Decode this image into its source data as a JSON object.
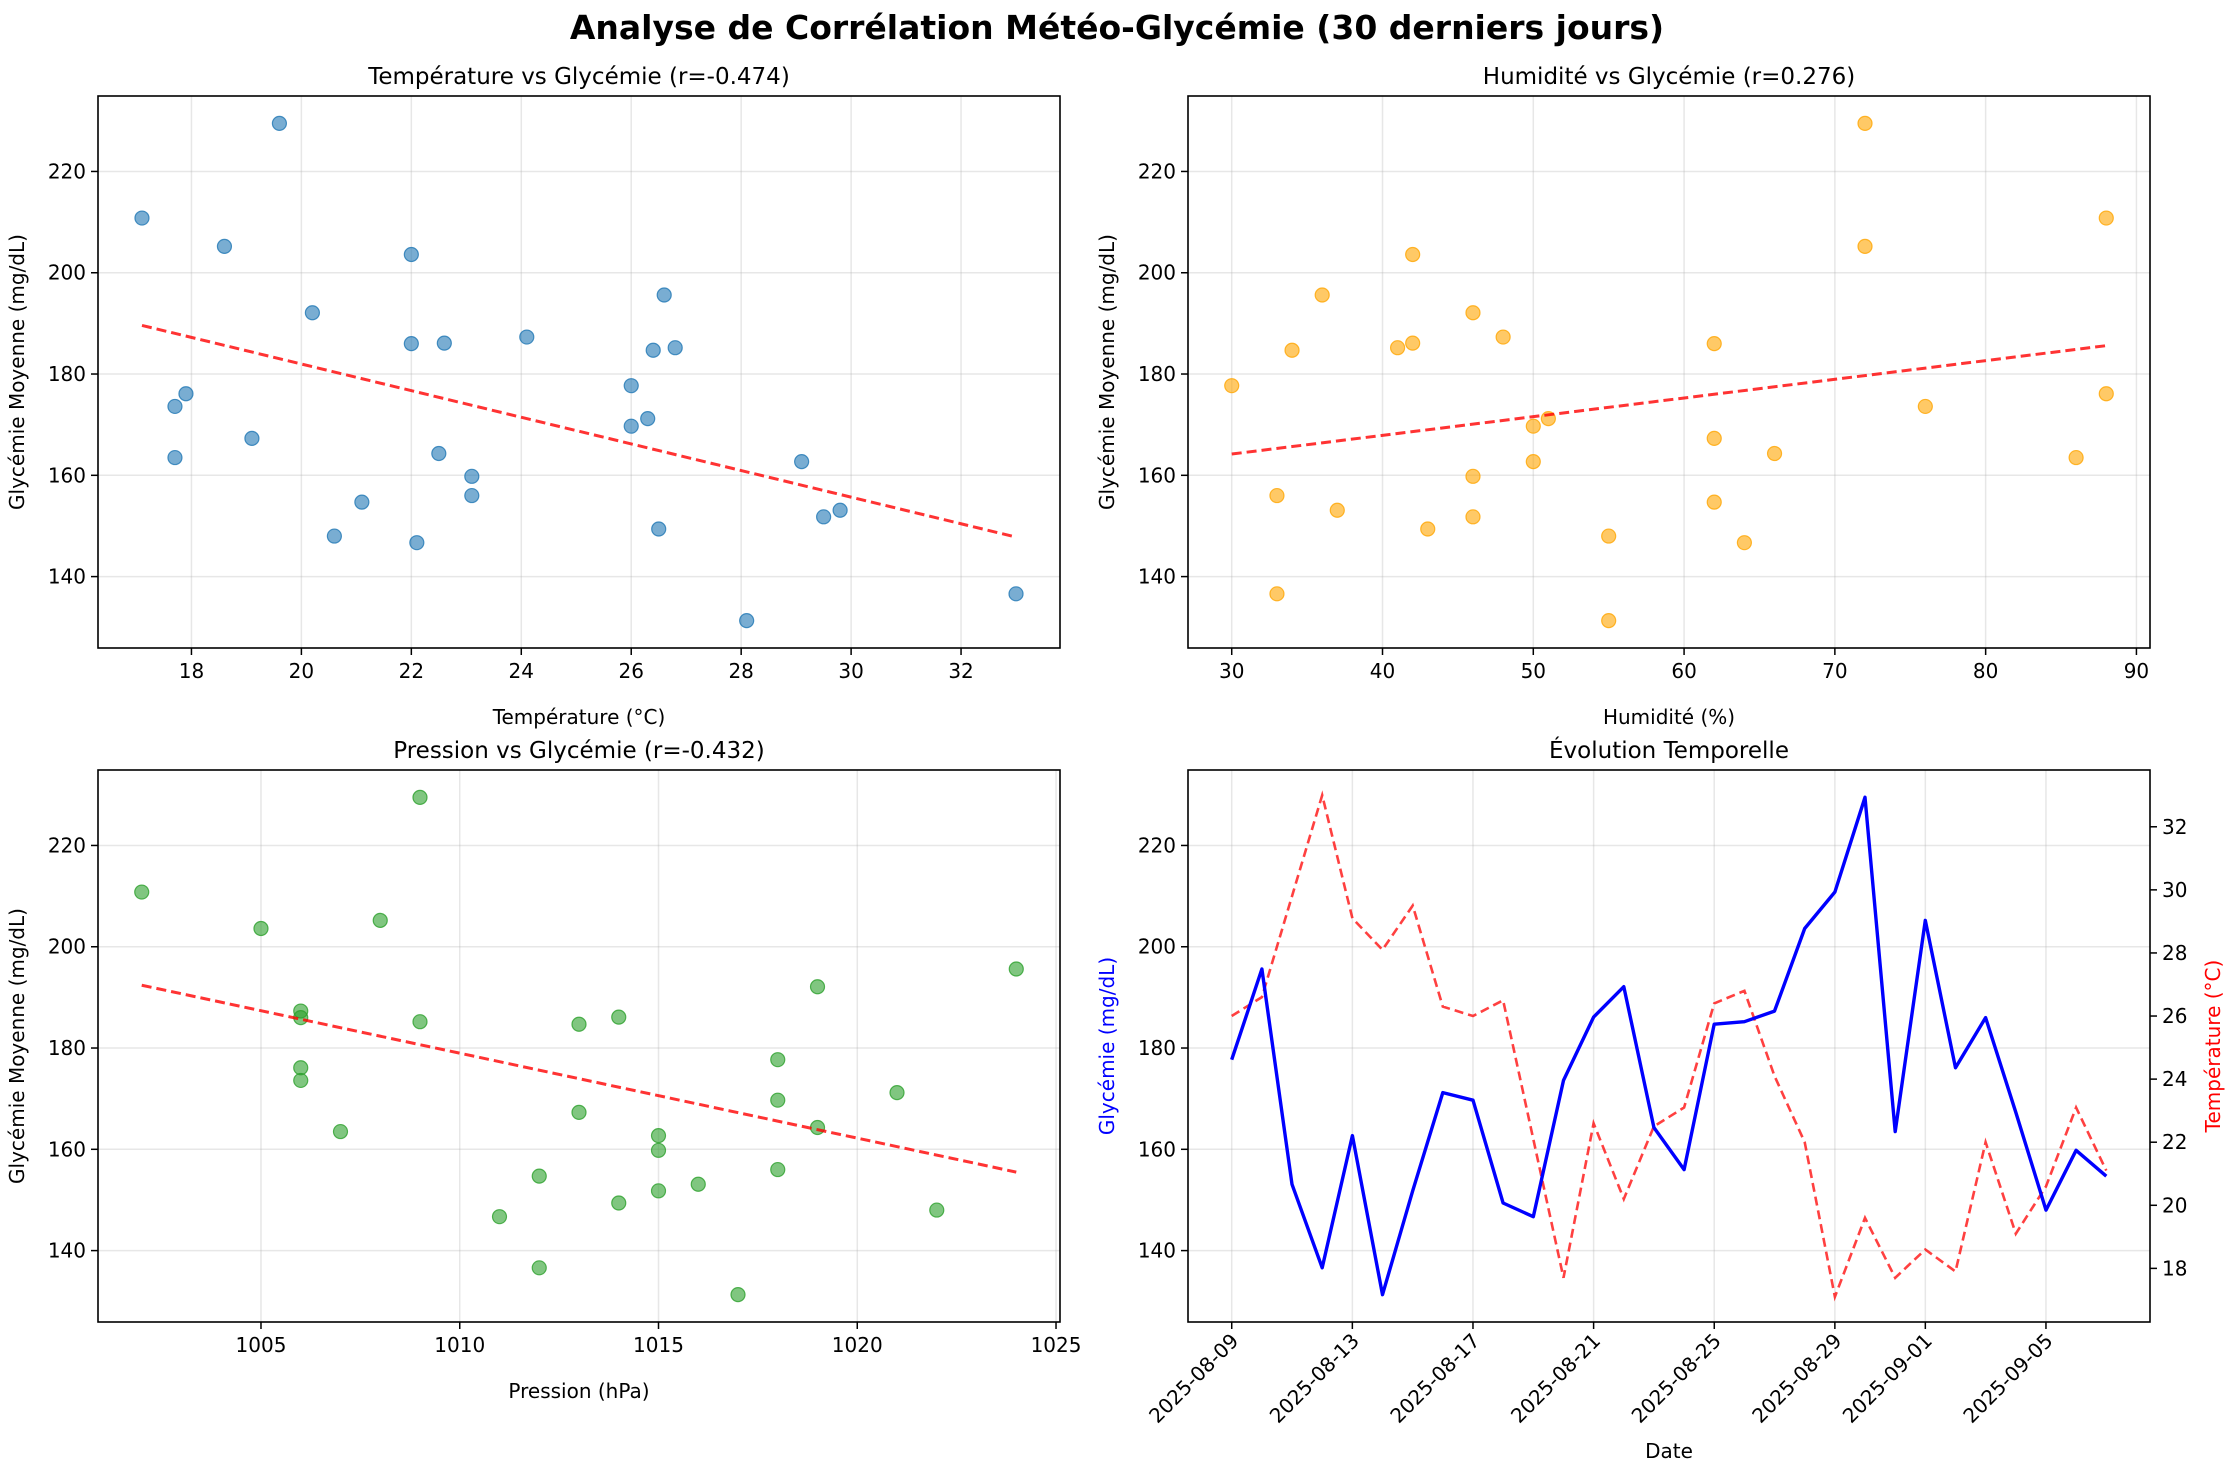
{
  "suptitle": "Analyse de Corrélation Météo-Glycémie (30 derniers jours)",
  "dates": [
    "2025-08-09",
    "2025-08-10",
    "2025-08-11",
    "2025-08-12",
    "2025-08-13",
    "2025-08-14",
    "2025-08-15",
    "2025-08-16",
    "2025-08-17",
    "2025-08-18",
    "2025-08-19",
    "2025-08-20",
    "2025-08-21",
    "2025-08-22",
    "2025-08-23",
    "2025-08-24",
    "2025-08-25",
    "2025-08-26",
    "2025-08-27",
    "2025-08-28",
    "2025-08-29",
    "2025-08-30",
    "2025-08-31",
    "2025-09-01",
    "2025-09-02",
    "2025-09-03",
    "2025-09-04",
    "2025-09-05",
    "2025-09-06",
    "2025-09-07"
  ],
  "glycemia": [
    177.7,
    195.6,
    153.1,
    136.6,
    162.7,
    131.3,
    151.8,
    171.2,
    169.7,
    149.4,
    146.7,
    173.6,
    186.1,
    192.1,
    164.3,
    156.0,
    184.7,
    185.2,
    187.3,
    203.6,
    210.8,
    229.5,
    163.5,
    205.2,
    176.1,
    186.0,
    167.3,
    148.0,
    159.8,
    154.7
  ],
  "temperature": [
    26.0,
    26.6,
    29.8,
    33.0,
    29.1,
    28.1,
    29.5,
    26.3,
    26.0,
    26.5,
    22.1,
    17.7,
    22.6,
    20.2,
    22.5,
    23.1,
    26.4,
    26.8,
    24.1,
    22.0,
    17.1,
    19.6,
    17.7,
    18.6,
    17.9,
    22.0,
    19.1,
    20.6,
    23.1,
    21.1
  ],
  "humidity": [
    30,
    36,
    37,
    33,
    50,
    55,
    46,
    51,
    50,
    43,
    64,
    76,
    42,
    46,
    66,
    33,
    34,
    41,
    48,
    42,
    88,
    72,
    86,
    72,
    88,
    62,
    62,
    55,
    46,
    62
  ],
  "pressure": [
    1018,
    1024,
    1016,
    1012,
    1015,
    1017,
    1015,
    1021,
    1018,
    1014,
    1011,
    1006,
    1014,
    1019,
    1019,
    1018,
    1013,
    1009,
    1006,
    1005,
    1002,
    1009,
    1007,
    1008,
    1006,
    1006,
    1013,
    1022,
    1015,
    1012
  ],
  "charts": [
    {
      "id": "temp",
      "title": "Température vs Glycémie (r=-0.474)",
      "xlabel": "Température (°C)",
      "ylabel": "Glycémie Moyenne (mg/dL)",
      "xkey": "temperature",
      "xlim": [
        16.3,
        33.8
      ],
      "ylim": [
        125.9,
        234.9
      ],
      "xticks": [
        18,
        20,
        22,
        24,
        26,
        28,
        30,
        32
      ],
      "yticks": [
        140,
        160,
        180,
        200,
        220
      ],
      "point_color": "#1f77b4",
      "trend": [
        [
          17.1,
          189.6
        ],
        [
          33.0,
          147.8
        ]
      ]
    },
    {
      "id": "hum",
      "title": "Humidité vs Glycémie (r=0.276)",
      "xlabel": "Humidité (%)",
      "ylabel": "Glycémie Moyenne (mg/dL)",
      "xkey": "humidity",
      "xlim": [
        27.1,
        90.9
      ],
      "ylim": [
        125.9,
        234.9
      ],
      "xticks": [
        30,
        40,
        50,
        60,
        70,
        80,
        90
      ],
      "yticks": [
        140,
        160,
        180,
        200,
        220
      ],
      "point_color": "#ffa500",
      "trend": [
        [
          30,
          164.2
        ],
        [
          88,
          185.6
        ]
      ]
    },
    {
      "id": "pres",
      "title": "Pression vs Glycémie (r=-0.432)",
      "xlabel": "Pression (hPa)",
      "ylabel": "Glycémie Moyenne (mg/dL)",
      "xkey": "pressure",
      "xlim": [
        1000.9,
        1025.1
      ],
      "ylim": [
        125.9,
        234.9
      ],
      "xticks": [
        1005,
        1010,
        1015,
        1020,
        1025
      ],
      "yticks": [
        140,
        160,
        180,
        200,
        220
      ],
      "point_color": "#2ca02c",
      "trend": [
        [
          1002,
          192.4
        ],
        [
          1024,
          155.5
        ]
      ]
    }
  ],
  "timeseries": {
    "title": "Évolution Temporelle",
    "xlabel": "Date",
    "ylabel_left": "Glycémie (mg/dL)",
    "ylabel_right": "Température (°C)",
    "ylim_left": [
      125.9,
      234.9
    ],
    "ylim_right": [
      16.3,
      33.8
    ],
    "yticks_left": [
      140,
      160,
      180,
      200,
      220
    ],
    "yticks_right": [
      18,
      20,
      22,
      24,
      26,
      28,
      30,
      32
    ],
    "xtick_labels": [
      "2025-08-09",
      "2025-08-13",
      "2025-08-17",
      "2025-08-21",
      "2025-08-25",
      "2025-08-29",
      "2025-09-01",
      "2025-09-05"
    ],
    "xtick_index": [
      0,
      4,
      8,
      12,
      16,
      20,
      23,
      27
    ],
    "left_color": "#0000ff",
    "right_color": "#ff0000"
  },
  "trend_color": "#ff0000"
}
